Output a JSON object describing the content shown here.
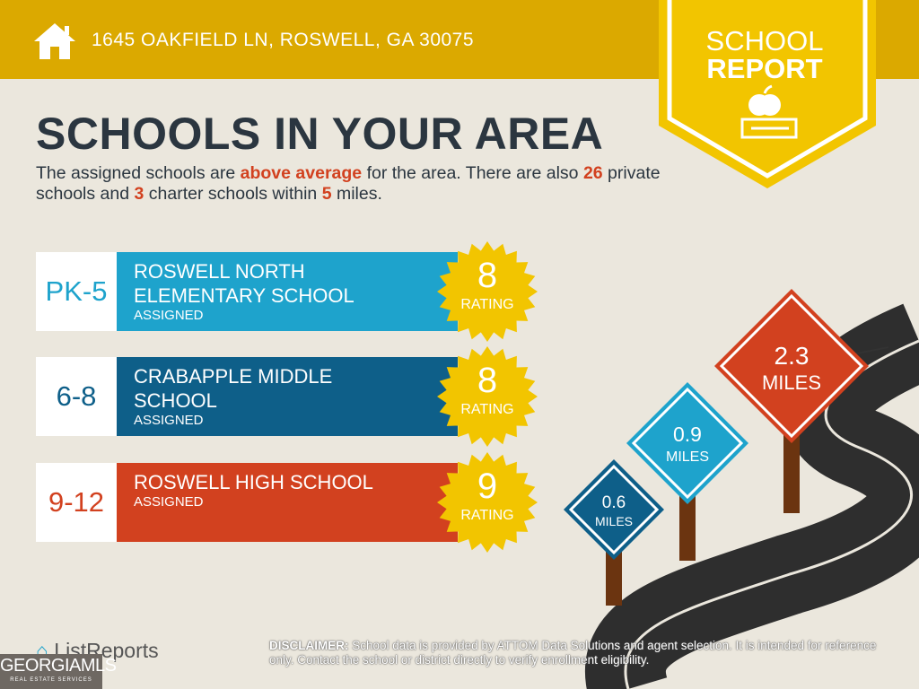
{
  "header": {
    "address": "1645 OAKFIELD LN, ROSWELL, GA 30075",
    "icon": "home-icon",
    "color": "#dba900"
  },
  "badge": {
    "line1": "SCHOOL",
    "line2": "REPORT",
    "icon": "apple-book-icon",
    "color": "#f2c500"
  },
  "title": "SCHOOLS IN YOUR AREA",
  "intro": {
    "p1": "The assigned schools are ",
    "hl1": "above average",
    "p2": " for the area. There are also ",
    "hl2": "26",
    "p3": " private schools and ",
    "hl3": "3",
    "p4": " charter schools within ",
    "hl4": "5",
    "p5": " miles."
  },
  "schools": [
    {
      "grades": "PK-5",
      "name": "ROSWELL NORTH ELEMENTARY SCHOOL",
      "status": "ASSIGNED",
      "rating": "8",
      "rating_label": "RATING",
      "color": "#1ea3cc"
    },
    {
      "grades": "6-8",
      "name": "CRABAPPLE MIDDLE SCHOOL",
      "status": "ASSIGNED",
      "rating": "8",
      "rating_label": "RATING",
      "color": "#0e5f89"
    },
    {
      "grades": "9-12",
      "name": "ROSWELL HIGH SCHOOL",
      "status": "ASSIGNED",
      "rating": "9",
      "rating_label": "RATING",
      "color": "#d2411f"
    }
  ],
  "signs": [
    {
      "value": "0.6",
      "unit": "MILES",
      "color": "#0e5f89"
    },
    {
      "value": "0.9",
      "unit": "MILES",
      "color": "#1ea3cc"
    },
    {
      "value": "2.3",
      "unit": "MILES",
      "color": "#d2411f"
    }
  ],
  "footer": {
    "brand": "ListReports",
    "disclaimer_label": "DISCLAIMER:",
    "disclaimer": " School data is provided by ATTOM Data Solutions and agent selection. It is intended for reference only. Contact the school or district directly to verify enrollment eligibility.",
    "mls": "GEORGIAMLS",
    "mls_sub": "REAL ESTATE SERVICES"
  }
}
